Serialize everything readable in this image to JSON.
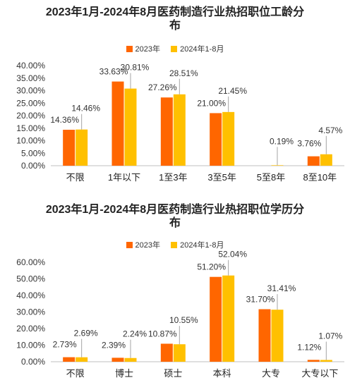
{
  "colors": {
    "series_2023": "#FF6600",
    "series_2024": "#FFC000",
    "axis": "#bfbfbf",
    "leader": "#a6a6a6"
  },
  "chart_data": [
    {
      "type": "bar",
      "title": "2023年1月-2024年8月医药制造行业热招职位工龄分布",
      "title_line1": "2023年1月-2024年8月医药制造行业热招职位工龄分",
      "title_line2": "布",
      "legend_position": "top",
      "categories": [
        "不限",
        "1年以下",
        "1至3年",
        "3至5年",
        "5至8年",
        "8至10年"
      ],
      "series": [
        {
          "name": "2023年",
          "values": [
            14.36,
            33.63,
            27.26,
            21.0,
            0,
            3.76
          ],
          "labels": [
            "14.36%",
            "33.63%",
            "27.26%",
            "21.00%",
            "",
            "3.76%"
          ]
        },
        {
          "name": "2024年1-8月",
          "values": [
            14.46,
            30.81,
            28.51,
            21.45,
            0.19,
            4.57
          ],
          "labels": [
            "14.46%",
            "30.81%",
            "28.51%",
            "21.45%",
            "0.19%",
            "4.57%"
          ]
        }
      ],
      "yticks": [
        "0.00%",
        "5.00%",
        "10.00%",
        "15.00%",
        "20.00%",
        "25.00%",
        "30.00%",
        "35.00%",
        "40.00%"
      ],
      "ylim": [
        0,
        40
      ],
      "grid": false
    },
    {
      "type": "bar",
      "title": "2023年1月-2024年8月医药制造行业热招职位学历分布",
      "title_line1": "2023年1月-2024年8月医药制造行业热招职位学历分",
      "title_line2": "布",
      "legend_position": "top",
      "categories": [
        "不限",
        "博士",
        "硕士",
        "本科",
        "大专",
        "大专以下"
      ],
      "series": [
        {
          "name": "2023年",
          "values": [
            2.73,
            2.39,
            10.87,
            51.2,
            31.7,
            1.12
          ],
          "labels": [
            "2.73%",
            "2.39%",
            "10.87%",
            "51.20%",
            "31.70%",
            "1.12%"
          ]
        },
        {
          "name": "2024年1-8月",
          "values": [
            2.69,
            2.24,
            10.55,
            52.04,
            31.41,
            1.07
          ],
          "labels": [
            "2.69%",
            "2.24%",
            "10.55%",
            "52.04%",
            "31.41%",
            "1.07%"
          ]
        }
      ],
      "yticks": [
        "0.00%",
        "10.00%",
        "20.00%",
        "30.00%",
        "40.00%",
        "50.00%",
        "60.00%"
      ],
      "ylim": [
        0,
        60
      ],
      "grid": false
    }
  ]
}
